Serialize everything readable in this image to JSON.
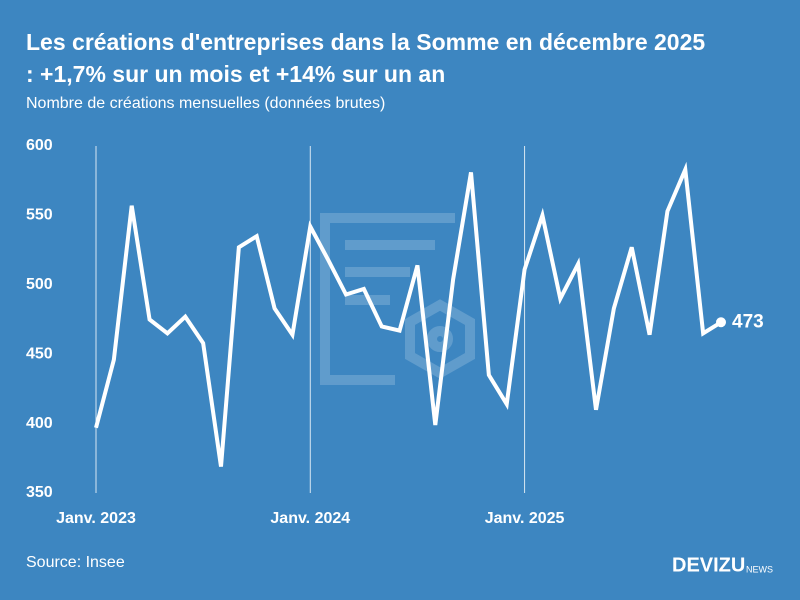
{
  "title": "Les créations d'entreprises dans la Somme en décembre 2025",
  "title_line2": ": +1,7% sur un mois et +14% sur un an",
  "source": "Source: Insee",
  "brand": "DEVIZU",
  "brand_suffix": "NEWS",
  "chart_data": {
    "type": "line",
    "subtitle": "Nombre de créations mensuelles (données brutes)",
    "categories": [
      "Janv. 2023",
      null,
      null,
      null,
      null,
      null,
      null,
      null,
      null,
      null,
      null,
      null,
      "Janv. 2024",
      null,
      null,
      null,
      null,
      null,
      null,
      null,
      null,
      null,
      null,
      null,
      "Janv. 2025",
      null,
      null,
      null,
      null,
      null,
      null,
      null,
      null,
      null,
      null,
      null
    ],
    "series": [
      {
        "name": "Créations",
        "color": "#ffffff",
        "values": [
          397,
          446,
          557,
          475,
          465,
          477,
          458,
          369,
          527,
          535,
          483,
          464,
          542,
          518,
          493,
          497,
          470,
          467,
          514,
          399,
          504,
          581,
          435,
          414,
          511,
          550,
          490,
          515,
          410,
          483,
          527,
          464,
          553,
          583,
          465,
          473
        ]
      }
    ],
    "ylim": [
      350,
      600
    ],
    "yticks": [
      350,
      400,
      450,
      500,
      550,
      600
    ],
    "grid": true
  }
}
